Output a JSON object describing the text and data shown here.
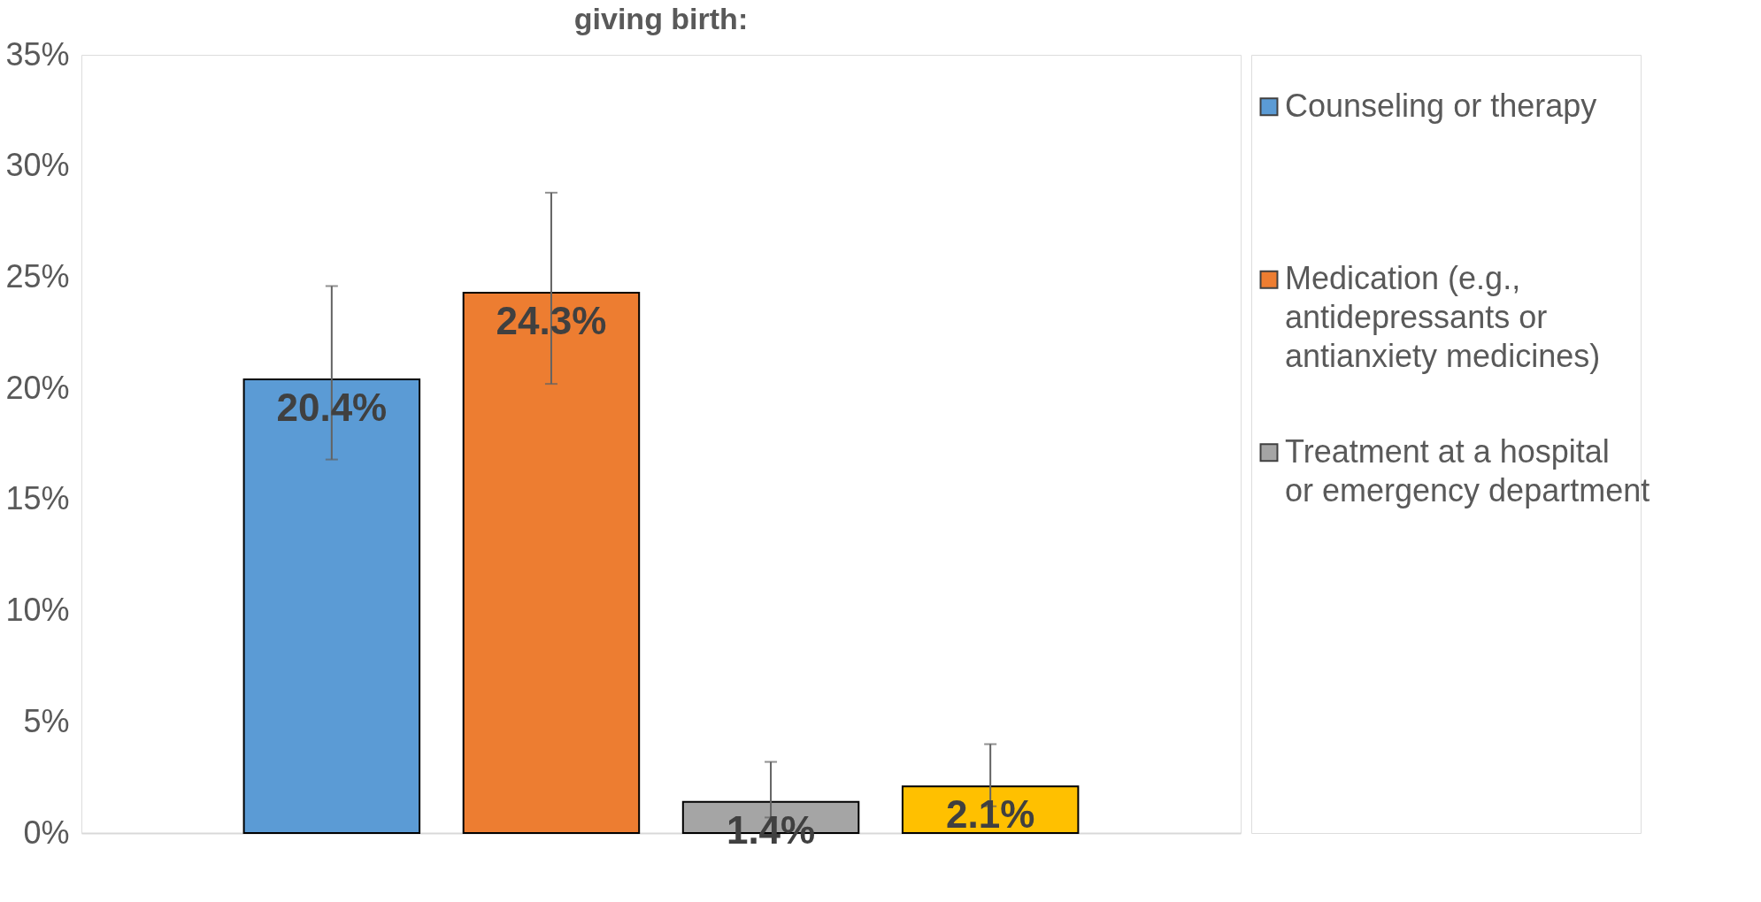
{
  "chart_data": {
    "type": "bar",
    "title": "giving birth:",
    "categories": [
      null
    ],
    "series": [
      {
        "name": "Counseling or therapy",
        "color": "#5b9bd5",
        "values": [
          20.4
        ],
        "errors": [
          [
            16.8,
            24.6
          ]
        ],
        "value_labels": [
          "20.4%"
        ]
      },
      {
        "name": "Medication (e.g., antidepressants or antianxiety medicines)",
        "color": "#ed7d31",
        "values": [
          24.3
        ],
        "errors": [
          [
            20.2,
            28.8
          ]
        ],
        "value_labels": [
          "24.3%"
        ]
      },
      {
        "name": "Treatment at a hospital or emergency department",
        "color": "#a5a5a5",
        "values": [
          1.4
        ],
        "errors": [
          [
            0.7,
            3.2
          ]
        ],
        "value_labels": [
          "1.4%"
        ]
      },
      {
        "color": "#ffc000",
        "values": [
          2.1
        ],
        "errors": [
          [
            1.2,
            4.0
          ]
        ],
        "value_labels": [
          "2.1%"
        ]
      }
    ],
    "ylim": [
      0,
      35
    ],
    "yticks": [
      {
        "value": 0,
        "label": "0%"
      },
      {
        "value": 5,
        "label": "5%"
      },
      {
        "value": 10,
        "label": "10%"
      },
      {
        "value": 15,
        "label": "15%"
      },
      {
        "value": 20,
        "label": "20%"
      },
      {
        "value": 25,
        "label": "25%"
      },
      {
        "value": 30,
        "label": "30%"
      },
      {
        "value": 35,
        "label": "35%"
      }
    ],
    "grid": false,
    "legend": "right"
  }
}
